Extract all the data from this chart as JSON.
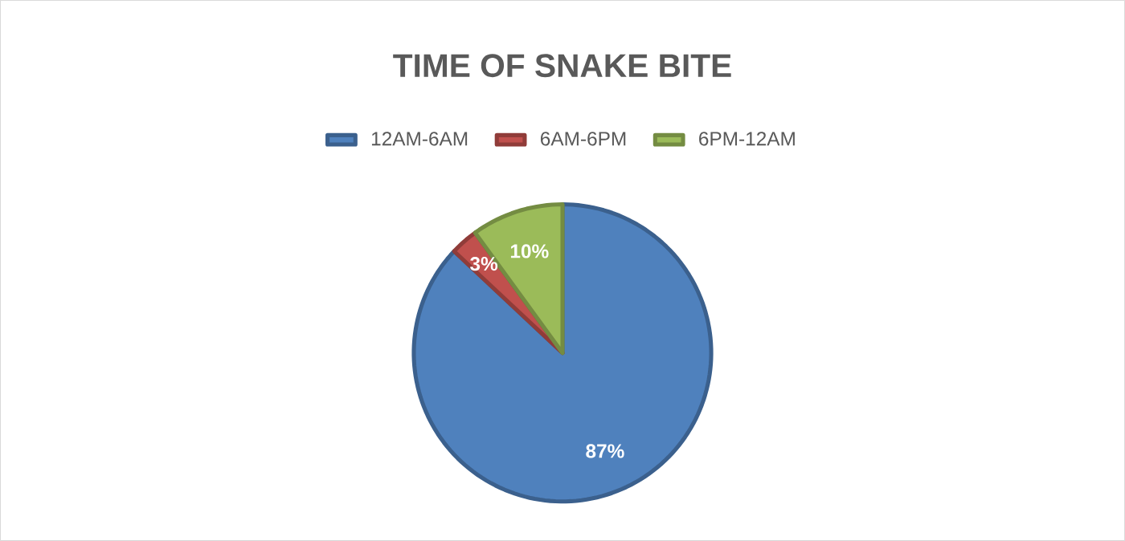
{
  "chart_data": {
    "type": "pie",
    "title": "TIME OF SNAKE BITE",
    "categories": [
      "12AM-6AM",
      "6AM-6PM",
      "6PM-12AM"
    ],
    "values": [
      87,
      3,
      10
    ],
    "colors": [
      "#4f81bd",
      "#c0504d",
      "#9bbb59"
    ],
    "value_labels": [
      "87%",
      "3%",
      "10%"
    ],
    "legend": "top"
  }
}
